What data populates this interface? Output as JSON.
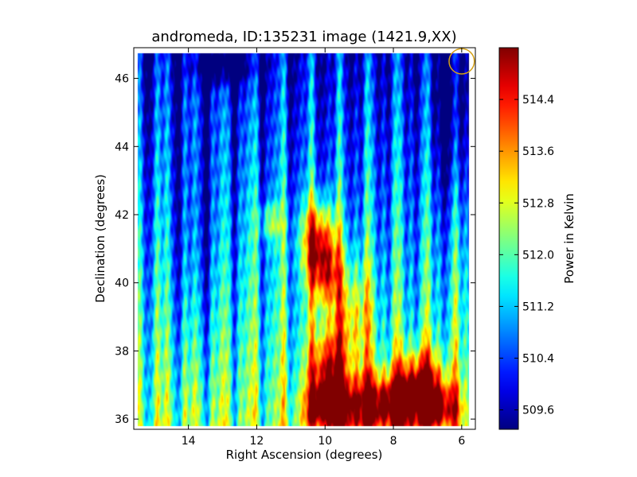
{
  "chart_data": {
    "type": "heatmap",
    "title": "andromeda, ID:135231 image (1421.9,XX)",
    "xlabel": "Right Ascension (degrees)",
    "ylabel": "Declination (degrees)",
    "xlim": [
      15.6,
      5.6
    ],
    "ylim": [
      35.7,
      46.9
    ],
    "x_ticks": [
      14,
      12,
      10,
      8,
      6
    ],
    "y_ticks": [
      36,
      38,
      40,
      42,
      44,
      46
    ],
    "x_tick_labels": [
      "14",
      "12",
      "10",
      "8",
      "6"
    ],
    "y_tick_labels": [
      "36",
      "38",
      "40",
      "42",
      "44",
      "46"
    ],
    "colorbar": {
      "label": "Power in Kelvin",
      "range": [
        509.3,
        515.2
      ],
      "ticks": [
        509.6,
        510.4,
        511.2,
        512.0,
        512.8,
        513.6,
        514.4
      ],
      "tick_labels": [
        "509.6",
        "510.4",
        "511.2",
        "512.0",
        "512.8",
        "513.6",
        "514.4"
      ],
      "colormap": "jet"
    },
    "beam_marker": {
      "ra": 6.0,
      "dec": 46.5,
      "radius_deg": 0.37,
      "color": "#d4a017"
    },
    "field_extent": {
      "ra": [
        15.5,
        5.8
      ],
      "dec": [
        35.8,
        46.75
      ]
    },
    "hotspots": [
      {
        "ra": 10.2,
        "dec": 41.3,
        "sigma_ra": 0.35,
        "sigma_dec": 0.8,
        "amp": 3.4
      },
      {
        "ra": 10.0,
        "dec": 40.2,
        "sigma_ra": 0.3,
        "sigma_dec": 0.7,
        "amp": 2.6
      },
      {
        "ra": 9.95,
        "dec": 37.4,
        "sigma_ra": 0.35,
        "sigma_dec": 0.9,
        "amp": 3.2
      },
      {
        "ra": 9.9,
        "dec": 36.3,
        "sigma_ra": 0.5,
        "sigma_dec": 0.5,
        "amp": 3.2
      },
      {
        "ra": 8.9,
        "dec": 36.4,
        "sigma_ra": 0.5,
        "sigma_dec": 0.7,
        "amp": 2.4
      },
      {
        "ra": 7.8,
        "dec": 36.4,
        "sigma_ra": 0.6,
        "sigma_dec": 0.6,
        "amp": 3.4
      },
      {
        "ra": 7.2,
        "dec": 37.1,
        "sigma_ra": 0.5,
        "sigma_dec": 0.7,
        "amp": 2.8
      },
      {
        "ra": 6.6,
        "dec": 36.3,
        "sigma_ra": 0.4,
        "sigma_dec": 0.5,
        "amp": 2.6
      },
      {
        "ra": 9.2,
        "dec": 39.0,
        "sigma_ra": 0.4,
        "sigma_dec": 1.2,
        "amp": 1.8
      },
      {
        "ra": 11.6,
        "dec": 41.8,
        "sigma_ra": 0.25,
        "sigma_dec": 0.4,
        "amp": 1.6
      },
      {
        "ra": 13.0,
        "dec": 46.4,
        "sigma_ra": 0.6,
        "sigma_dec": 0.4,
        "amp": -1.6
      },
      {
        "ra": 6.3,
        "dec": 45.0,
        "sigma_ra": 0.4,
        "sigma_dec": 2.0,
        "amp": -1.2
      },
      {
        "ra": 13.8,
        "dec": 41.0,
        "sigma_ra": 0.5,
        "sigma_dec": 2.5,
        "amp": -0.8
      }
    ]
  }
}
